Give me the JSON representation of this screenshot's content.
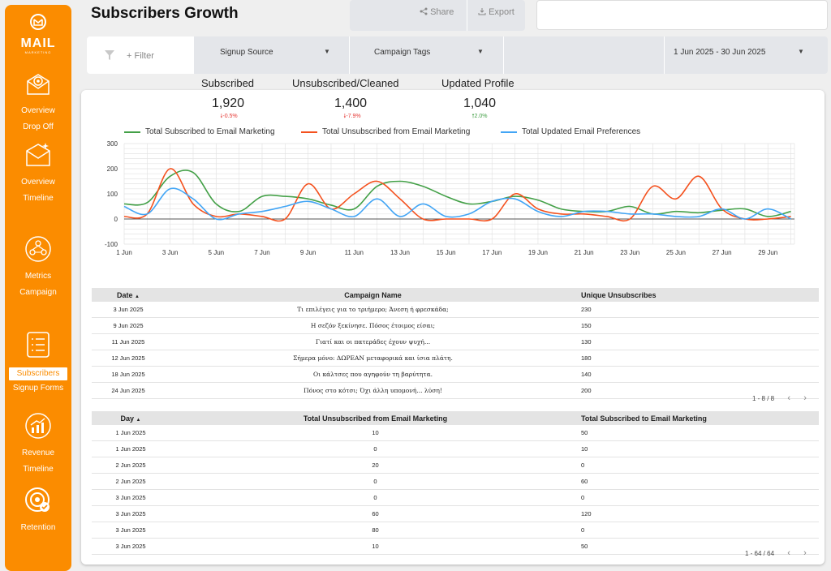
{
  "sidebar": {
    "logo_text": "MAIL",
    "logo_sub": "MARKETING",
    "items": [
      {
        "lines": [
          "Overview",
          "Drop Off"
        ]
      },
      {
        "lines": [
          "Overview",
          "Timeline"
        ]
      },
      {
        "lines": [
          "Metrics",
          "Campaign"
        ]
      },
      {
        "lines": [
          "Subscribers",
          "Signup Forms"
        ]
      },
      {
        "lines": [
          "Revenue",
          "Timeline"
        ]
      },
      {
        "lines": [
          "Retention"
        ]
      }
    ]
  },
  "header": {
    "title": "Subscribers Growth",
    "share": "Share",
    "export": "Export"
  },
  "filters": {
    "filter_label": "+ Filter",
    "signup_source": "Signup Source",
    "campaign_tags": "Campaign Tags",
    "date_range": "1 Jun 2025 - 30 Jun 2025"
  },
  "kpis": [
    {
      "label": "Subscribed",
      "value": "1,920",
      "delta": "-0.5%",
      "dir": "down"
    },
    {
      "label": "Unsubscribed/Cleaned",
      "value": "1,400",
      "delta": "-7.9%",
      "dir": "down"
    },
    {
      "label": "Updated Profile",
      "value": "1,040",
      "delta": "2.0%",
      "dir": "up"
    }
  ],
  "chart_data": {
    "type": "line",
    "x": [
      "1 Jun",
      "2 Jun",
      "3 Jun",
      "4 Jun",
      "5 Jun",
      "6 Jun",
      "7 Jun",
      "8 Jun",
      "9 Jun",
      "10 Jun",
      "11 Jun",
      "12 Jun",
      "13 Jun",
      "14 Jun",
      "15 Jun",
      "16 Jun",
      "17 Jun",
      "18 Jun",
      "19 Jun",
      "20 Jun",
      "21 Jun",
      "22 Jun",
      "23 Jun",
      "24 Jun",
      "25 Jun",
      "26 Jun",
      "27 Jun",
      "28 Jun",
      "29 Jun",
      "30 Jun"
    ],
    "tick_labels": [
      "1 Jun",
      "3 Jun",
      "5 Jun",
      "7 Jun",
      "9 Jun",
      "11 Jun",
      "13 Jun",
      "15 Jun",
      "17 Jun",
      "19 Jun",
      "21 Jun",
      "23 Jun",
      "25 Jun",
      "27 Jun",
      "29 Jun"
    ],
    "ylim": [
      -100,
      300
    ],
    "yticks": [
      -100,
      0,
      100,
      200,
      300
    ],
    "series": [
      {
        "name": "Total Subscribed to Email Marketing",
        "color": "#43a047",
        "values": [
          60,
          65,
          170,
          185,
          60,
          30,
          90,
          90,
          80,
          55,
          40,
          130,
          150,
          130,
          90,
          60,
          70,
          90,
          75,
          40,
          30,
          30,
          50,
          20,
          30,
          25,
          35,
          40,
          10,
          30
        ]
      },
      {
        "name": "Total Unsubscribed from Email Marketing",
        "color": "#f4511e",
        "values": [
          10,
          20,
          200,
          60,
          10,
          20,
          10,
          0,
          140,
          40,
          100,
          150,
          80,
          0,
          0,
          0,
          0,
          100,
          40,
          20,
          20,
          10,
          0,
          130,
          80,
          170,
          40,
          0,
          0,
          10
        ]
      },
      {
        "name": "Total Updated Email Preferences",
        "color": "#42a5f5",
        "values": [
          50,
          20,
          120,
          80,
          0,
          20,
          30,
          50,
          70,
          40,
          10,
          80,
          10,
          60,
          10,
          20,
          70,
          80,
          30,
          10,
          30,
          30,
          20,
          20,
          10,
          10,
          40,
          0,
          40,
          0
        ]
      }
    ]
  },
  "table1": {
    "headers": [
      "Date",
      "Campaign Name",
      "Unique Unsubscribes"
    ],
    "sort_icon": "▲",
    "rows": [
      [
        "3 Jun 2025",
        "Τι επιλέγεις για το τριήμερο; Άνεση ή φρεσκάδα;",
        "230"
      ],
      [
        "9 Jun 2025",
        "Η σεζόν ξεκίνησε. Πόσος έτοιμος είσαι;",
        "150"
      ],
      [
        "11 Jun 2025",
        "Γιατί και οι πατεράδες έχουν ψυχή...",
        "130"
      ],
      [
        "12 Jun 2025",
        "Σήμερα μόνο: ΔΩΡΕΑΝ μεταφορικά και ίσια πλάτη.",
        "180"
      ],
      [
        "18 Jun 2025",
        "Οι κάλτσες που αγηφούν τη βαρύτητα.",
        "140"
      ],
      [
        "24 Jun 2025",
        "Πόνος στο κότσι; Όχι άλλη υπομονή... λύση!",
        "200"
      ]
    ],
    "pager": "1 - 8 / 8"
  },
  "table2": {
    "headers": [
      "Day",
      "Total Unsubscribed from Email Marketing",
      "Total Subscribed to Email Marketing"
    ],
    "sort_icon": "▲",
    "rows": [
      [
        "1 Jun 2025",
        "10",
        "50"
      ],
      [
        "1 Jun 2025",
        "0",
        "10"
      ],
      [
        "2 Jun 2025",
        "20",
        "0"
      ],
      [
        "2 Jun 2025",
        "0",
        "60"
      ],
      [
        "3 Jun 2025",
        "0",
        "0"
      ],
      [
        "3 Jun 2025",
        "60",
        "120"
      ],
      [
        "3 Jun 2025",
        "80",
        "0"
      ],
      [
        "3 Jun 2025",
        "10",
        "50"
      ]
    ],
    "pager": "1 - 64 / 64"
  }
}
